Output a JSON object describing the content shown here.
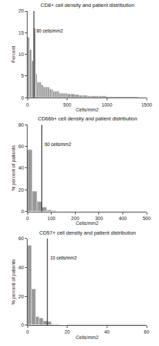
{
  "chart_data": [
    {
      "type": "histogram",
      "title": "CD8+ cell density and patient distribution",
      "xlabel": "Cells/mm2",
      "ylabel": "Percent",
      "xlim": [
        0,
        1500
      ],
      "ylim": [
        0,
        20
      ],
      "xticks": [
        0,
        500,
        1000,
        1500
      ],
      "yticks": [
        0,
        5,
        10,
        15,
        20
      ],
      "bins": [
        0,
        25,
        50,
        75,
        100,
        125,
        150,
        175,
        200,
        225,
        250,
        275,
        300,
        325,
        350,
        375,
        400,
        425,
        450,
        475,
        500,
        550,
        600,
        650,
        700,
        750,
        800,
        900,
        1000,
        1100,
        1200,
        1300,
        1400,
        1500
      ],
      "values": [
        14.0,
        11.0,
        8.5,
        16.0,
        5.5,
        3.5,
        3.5,
        3.0,
        2.5,
        2.5,
        2.5,
        2.0,
        2.0,
        1.5,
        1.5,
        1.5,
        1.0,
        1.0,
        1.0,
        1.0,
        0.8,
        0.8,
        0.7,
        0.5,
        0.5,
        0.4,
        0.3,
        0.3,
        0.2,
        0.2,
        0.2,
        0.2,
        0.1
      ],
      "color": "#999999",
      "grid": false,
      "annotations": [
        {
          "x": 80,
          "text": "80 cells/mm2"
        }
      ]
    },
    {
      "type": "histogram",
      "title": "CD66b+ cell density and patient distribution",
      "xlabel": "Cells/mm2",
      "ylabel": "% percent of patients",
      "xlim": [
        0,
        500
      ],
      "ylim": [
        0,
        80
      ],
      "xticks": [
        0,
        100,
        200,
        300,
        400,
        500
      ],
      "yticks": [
        0,
        20,
        40,
        60,
        80
      ],
      "bins": [
        0,
        20,
        40,
        60,
        80,
        100,
        120,
        140,
        160,
        500
      ],
      "values": [
        57,
        19,
        9,
        4,
        1.5,
        0.8,
        0.4,
        0.2,
        0.1
      ],
      "color": "#999999",
      "grid": false,
      "annotations": [
        {
          "x": 60,
          "text": "60 cells/mm2"
        }
      ]
    },
    {
      "type": "histogram",
      "title": "CD57+ cell density and patient distribution",
      "xlabel": "Cells/mm2",
      "ylabel": "% percent of patients",
      "xlim": [
        0,
        60
      ],
      "ylim": [
        0,
        60
      ],
      "xticks": [
        0,
        20,
        40,
        60
      ],
      "yticks": [
        0,
        20,
        40,
        60
      ],
      "bins": [
        0,
        2,
        4,
        6,
        8,
        10,
        12,
        14,
        16,
        18,
        20,
        60
      ],
      "values": [
        55,
        25,
        6,
        5,
        3,
        2.5,
        0.8,
        0.5,
        0.3,
        0.2,
        0.5
      ],
      "color": "#999999",
      "grid": false,
      "annotations": [
        {
          "x": 10,
          "text": "10 cells/mm2"
        }
      ]
    }
  ]
}
